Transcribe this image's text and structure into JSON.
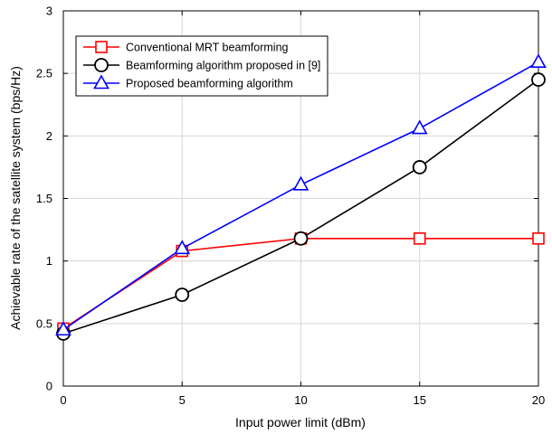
{
  "chart_data": {
    "type": "line",
    "title": "",
    "xlabel": "Input power limit (dBm)",
    "ylabel": "Achievable rate of the satellite system (bps/Hz)",
    "x": [
      0,
      5,
      10,
      15,
      20
    ],
    "xlim": [
      0,
      20
    ],
    "ylim": [
      0,
      3
    ],
    "xticks": [
      0,
      5,
      10,
      15,
      20
    ],
    "yticks": [
      0,
      0.5,
      1,
      1.5,
      2,
      2.5,
      3
    ],
    "xtick_labels": [
      "0",
      "5",
      "10",
      "15",
      "20"
    ],
    "ytick_labels": [
      "0",
      "0.5",
      "1",
      "1.5",
      "2",
      "2.5",
      "3"
    ],
    "grid": true,
    "legend_position": "top-left",
    "series": [
      {
        "name": "Conventional MRT beamforming",
        "color": "#ff0000",
        "marker": "square",
        "values": [
          0.46,
          1.08,
          1.18,
          1.18,
          1.18
        ]
      },
      {
        "name": "Beamforming algorithm proposed in [9]",
        "color": "#000000",
        "marker": "circle",
        "values": [
          0.42,
          0.73,
          1.18,
          1.75,
          2.45
        ]
      },
      {
        "name": "Proposed beamforming algorithm",
        "color": "#0000ff",
        "marker": "triangle",
        "values": [
          0.45,
          1.1,
          1.61,
          2.06,
          2.59
        ]
      }
    ]
  }
}
